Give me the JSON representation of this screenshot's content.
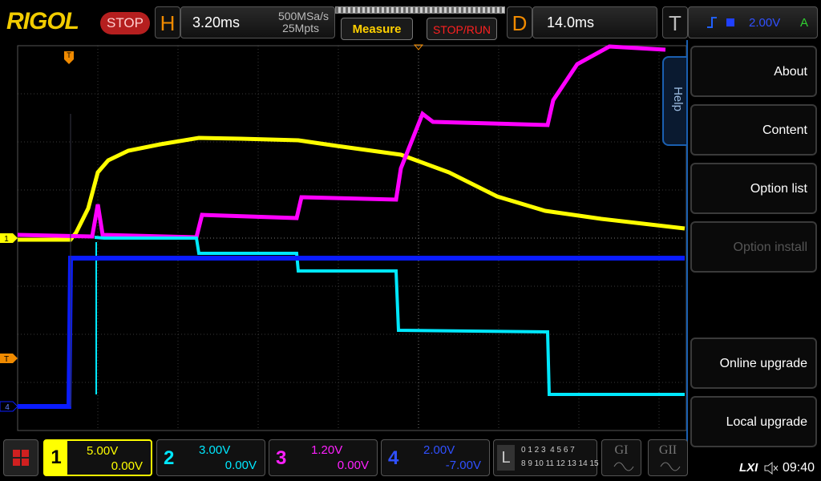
{
  "header": {
    "brand": "RIGOL",
    "run_state": "STOP",
    "horizontal": {
      "label": "H",
      "time_base": "3.20ms",
      "sample_rate": "500MSa/s",
      "memory_depth": "25Mpts"
    },
    "buttons": {
      "measure": "Measure",
      "stop_run": "STOP/RUN"
    },
    "delay": {
      "label": "D",
      "value": "14.0ms"
    },
    "trigger": {
      "label": "T",
      "level": "2.00V",
      "mode": "A"
    }
  },
  "screen_markers": {
    "trigger_top": "T",
    "ch1": "1",
    "trigger_level": "T",
    "ch4": "4"
  },
  "menu": {
    "tab": "Help",
    "items": [
      "About",
      "Content",
      "Option list",
      "Option install",
      "Online upgrade",
      "Local upgrade"
    ]
  },
  "channels": [
    {
      "number": "1",
      "scale": "5.00V",
      "offset": "0.00V"
    },
    {
      "number": "2",
      "scale": "3.00V",
      "offset": "0.00V"
    },
    {
      "number": "3",
      "scale": "1.20V",
      "offset": "0.00V"
    },
    {
      "number": "4",
      "scale": "2.00V",
      "offset": "-7.00V"
    }
  ],
  "logic": {
    "label": "L",
    "row1": "0 1 2 3  4 5 6 7",
    "row2": "8 9 10 11 12 13 14 15"
  },
  "generators": [
    "GI",
    "GII"
  ],
  "status": {
    "lxi": "LXI",
    "time": "09:40"
  }
}
